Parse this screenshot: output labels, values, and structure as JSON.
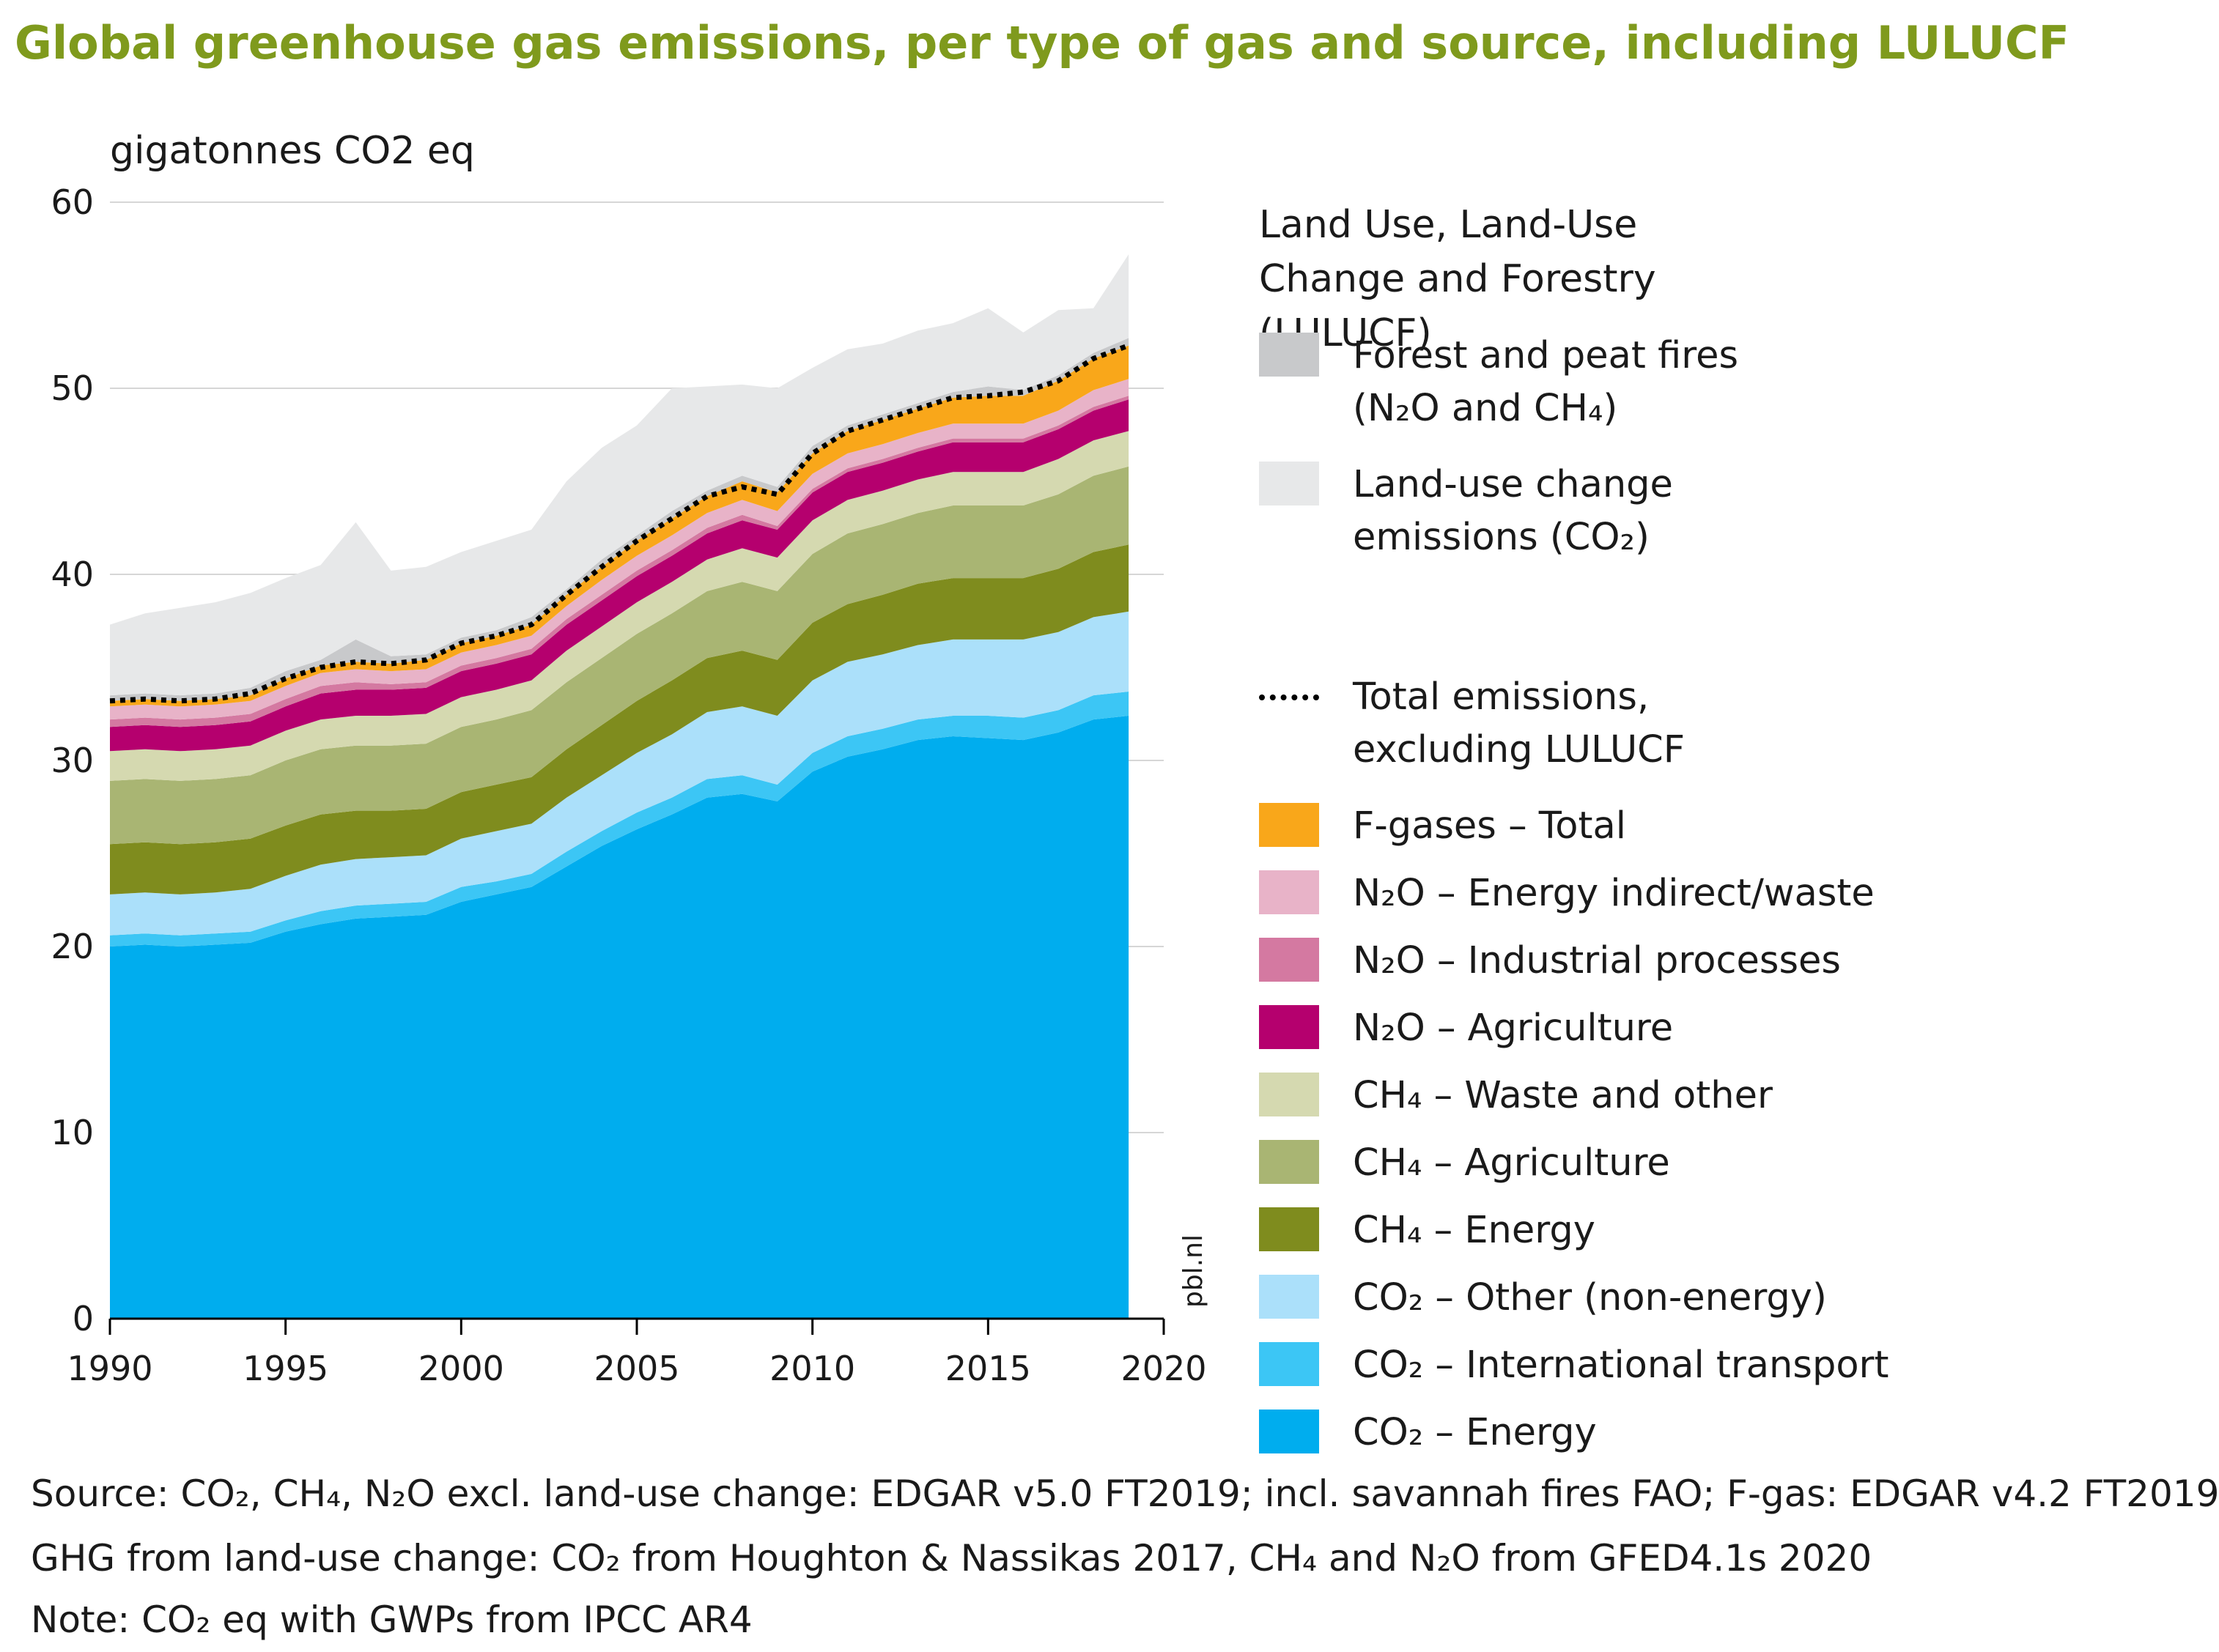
{
  "title": "Global greenhouse gas emissions, per type of gas and source, including LULUCF",
  "watermark": "pbl.nl",
  "colors": {
    "co2_energy": "#00adee",
    "co2_transport": "#3cc6f5",
    "co2_other": "#abe0fa",
    "ch4_energy": "#7f8c1e",
    "ch4_agriculture": "#a9b573",
    "ch4_waste": "#d5d9b0",
    "n2o_agriculture": "#b5006e",
    "n2o_industrial": "#d479a1",
    "n2o_energy": "#e8b3c8",
    "fgas": "#f9a71a",
    "fires": "#c8c9cb",
    "luc": "#e7e8e9",
    "total_line": "#000000",
    "title": "#7f9a1d"
  },
  "chart_data": {
    "type": "area",
    "stacked": true,
    "title": "Global greenhouse gas emissions, per type of gas and source, including LULUCF",
    "ylabel": "gigatonnes CO2 eq",
    "xlabel": "",
    "xlim": [
      1990,
      2020
    ],
    "ylim": [
      0,
      60
    ],
    "x_ticks": [
      1990,
      1995,
      2000,
      2005,
      2010,
      2015,
      2020
    ],
    "y_ticks": [
      0,
      10,
      20,
      30,
      40,
      50,
      60
    ],
    "x": [
      1990,
      1991,
      1992,
      1993,
      1994,
      1995,
      1996,
      1997,
      1998,
      1999,
      2000,
      2001,
      2002,
      2003,
      2004,
      2005,
      2006,
      2007,
      2008,
      2009,
      2010,
      2011,
      2012,
      2013,
      2014,
      2015,
      2016,
      2017,
      2018,
      2019
    ],
    "series": [
      {
        "name": "CO2 – Energy",
        "color_key": "co2_energy",
        "values": [
          20.0,
          20.1,
          20.0,
          20.1,
          20.2,
          20.8,
          21.2,
          21.5,
          21.6,
          21.7,
          22.4,
          22.8,
          23.2,
          24.3,
          25.4,
          26.3,
          27.1,
          28.0,
          28.2,
          27.8,
          29.4,
          30.2,
          30.6,
          31.1,
          31.3,
          31.2,
          31.1,
          31.5,
          32.2,
          32.4
        ]
      },
      {
        "name": "CO2 – International transport",
        "color_key": "co2_transport",
        "values": [
          0.6,
          0.6,
          0.6,
          0.6,
          0.6,
          0.6,
          0.7,
          0.7,
          0.7,
          0.7,
          0.8,
          0.7,
          0.7,
          0.8,
          0.8,
          0.9,
          0.9,
          1.0,
          1.0,
          0.9,
          1.0,
          1.1,
          1.1,
          1.1,
          1.1,
          1.2,
          1.2,
          1.2,
          1.3,
          1.3
        ]
      },
      {
        "name": "CO2 – Other (non-energy)",
        "color_key": "co2_other",
        "values": [
          2.2,
          2.2,
          2.2,
          2.2,
          2.3,
          2.4,
          2.5,
          2.5,
          2.5,
          2.5,
          2.6,
          2.7,
          2.7,
          2.9,
          3.0,
          3.2,
          3.4,
          3.6,
          3.7,
          3.7,
          3.9,
          4.0,
          4.0,
          4.0,
          4.1,
          4.1,
          4.2,
          4.2,
          4.2,
          4.3
        ]
      },
      {
        "name": "CH4 – Energy",
        "color_key": "ch4_energy",
        "values": [
          2.7,
          2.7,
          2.7,
          2.7,
          2.7,
          2.7,
          2.7,
          2.6,
          2.5,
          2.5,
          2.5,
          2.5,
          2.5,
          2.6,
          2.7,
          2.8,
          2.9,
          2.9,
          3.0,
          3.0,
          3.1,
          3.1,
          3.2,
          3.3,
          3.3,
          3.3,
          3.3,
          3.4,
          3.5,
          3.6
        ]
      },
      {
        "name": "CH4 – Agriculture",
        "color_key": "ch4_agriculture",
        "values": [
          3.4,
          3.4,
          3.4,
          3.4,
          3.4,
          3.5,
          3.5,
          3.5,
          3.5,
          3.5,
          3.5,
          3.5,
          3.6,
          3.6,
          3.6,
          3.6,
          3.6,
          3.6,
          3.7,
          3.7,
          3.7,
          3.8,
          3.8,
          3.8,
          3.9,
          3.9,
          3.9,
          4.0,
          4.1,
          4.2
        ]
      },
      {
        "name": "CH4 – Waste and other",
        "color_key": "ch4_waste",
        "values": [
          1.6,
          1.6,
          1.6,
          1.6,
          1.6,
          1.6,
          1.6,
          1.6,
          1.6,
          1.6,
          1.6,
          1.6,
          1.6,
          1.7,
          1.7,
          1.7,
          1.7,
          1.7,
          1.8,
          1.8,
          1.8,
          1.8,
          1.8,
          1.8,
          1.8,
          1.8,
          1.8,
          1.9,
          1.9,
          1.9
        ]
      },
      {
        "name": "N2O – Agriculture",
        "color_key": "n2o_agriculture",
        "values": [
          1.3,
          1.3,
          1.3,
          1.3,
          1.3,
          1.3,
          1.4,
          1.4,
          1.4,
          1.4,
          1.4,
          1.4,
          1.4,
          1.4,
          1.4,
          1.4,
          1.4,
          1.4,
          1.5,
          1.5,
          1.5,
          1.5,
          1.5,
          1.5,
          1.6,
          1.6,
          1.6,
          1.6,
          1.6,
          1.7
        ]
      },
      {
        "name": "N2O – Industrial processes",
        "color_key": "n2o_industrial",
        "values": [
          0.4,
          0.4,
          0.4,
          0.4,
          0.4,
          0.4,
          0.4,
          0.4,
          0.3,
          0.3,
          0.3,
          0.3,
          0.3,
          0.3,
          0.3,
          0.3,
          0.3,
          0.3,
          0.3,
          0.2,
          0.2,
          0.2,
          0.2,
          0.2,
          0.2,
          0.2,
          0.2,
          0.2,
          0.2,
          0.2
        ]
      },
      {
        "name": "N2O – Energy indirect/waste",
        "color_key": "n2o_energy",
        "values": [
          0.7,
          0.7,
          0.7,
          0.7,
          0.7,
          0.7,
          0.7,
          0.7,
          0.7,
          0.7,
          0.7,
          0.7,
          0.7,
          0.7,
          0.8,
          0.8,
          0.8,
          0.8,
          0.8,
          0.8,
          0.8,
          0.8,
          0.8,
          0.8,
          0.8,
          0.8,
          0.8,
          0.8,
          0.9,
          0.9
        ]
      },
      {
        "name": "F-gases – Total",
        "color_key": "fgas",
        "values": [
          0.3,
          0.3,
          0.3,
          0.3,
          0.3,
          0.4,
          0.4,
          0.4,
          0.4,
          0.5,
          0.5,
          0.5,
          0.6,
          0.6,
          0.7,
          0.8,
          0.9,
          0.9,
          1.0,
          1.0,
          1.1,
          1.2,
          1.3,
          1.3,
          1.4,
          1.5,
          1.5,
          1.6,
          1.7,
          1.8
        ]
      },
      {
        "name": "Forest and peat fires (N2O and CH4)",
        "color_key": "fires",
        "values": [
          0.3,
          0.3,
          0.3,
          0.3,
          0.4,
          0.4,
          0.3,
          1.2,
          0.4,
          0.3,
          0.3,
          0.3,
          0.4,
          0.3,
          0.4,
          0.3,
          0.4,
          0.3,
          0.3,
          0.3,
          0.4,
          0.3,
          0.3,
          0.3,
          0.3,
          0.5,
          0.3,
          0.3,
          0.3,
          0.4
        ]
      },
      {
        "name": "Land-use change emissions (CO2)",
        "color_key": "luc",
        "values": [
          3.8,
          4.3,
          4.7,
          4.9,
          5.1,
          5.0,
          5.1,
          6.3,
          4.6,
          4.7,
          4.6,
          4.8,
          4.7,
          5.8,
          6.0,
          5.9,
          6.6,
          5.6,
          4.9,
          5.3,
          4.2,
          4.1,
          3.8,
          3.9,
          3.7,
          4.2,
          3.1,
          3.5,
          2.4,
          4.5
        ]
      }
    ],
    "total_excluding_lulucf": [
      33.2,
      33.3,
      33.2,
      33.3,
      33.6,
      34.4,
      35.0,
      35.3,
      35.2,
      35.4,
      36.3,
      36.7,
      37.3,
      38.9,
      40.4,
      41.8,
      43.0,
      44.2,
      44.7,
      44.3,
      46.5,
      47.7,
      48.3,
      48.9,
      49.5,
      49.6,
      49.8,
      50.4,
      51.6,
      52.3
    ],
    "legend": {
      "group_title": "Land Use, Land-Use Change and Forestry (LULUCF)",
      "fires": "Forest and peat fires (N₂O and CH₄)",
      "luc": "Land-use change emissions (CO₂)",
      "total": "Total emissions, excluding LULUCF",
      "fgas": "F-gases – Total",
      "n2o_energy": "N₂O – Energy indirect/waste",
      "n2o_industrial": "N₂O – Industrial processes",
      "n2o_agriculture": "N₂O – Agriculture",
      "ch4_waste": "CH₄ – Waste and other",
      "ch4_agriculture": "CH₄ – Agriculture",
      "ch4_energy": "CH₄ – Energy",
      "co2_other": "CO₂ – Other (non-energy)",
      "co2_transport": "CO₂ – International transport",
      "co2_energy": "CO₂ – Energy"
    }
  },
  "footer": {
    "source": "Source: CO₂, CH₄, N₂O excl. land-use change: EDGAR v5.0 FT2019; incl. savannah fires FAO; F-gas: EDGAR v4.2 FT2019",
    "luc": "GHG from land-use change: CO₂ from Houghton & Nassikas 2017, CH₄ and N₂O from GFED4.1s 2020",
    "note": "Note: CO₂ eq with GWPs from IPCC AR4"
  }
}
